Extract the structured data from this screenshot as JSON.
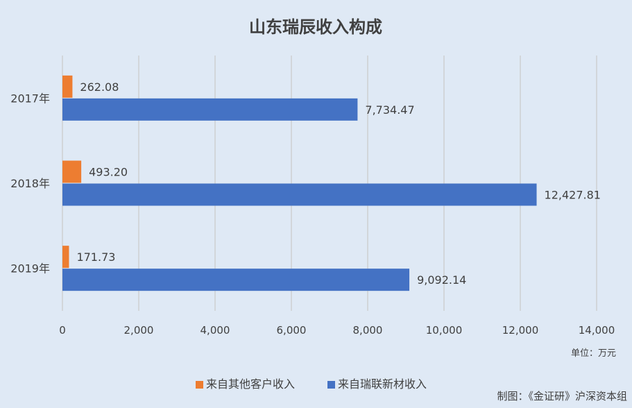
{
  "chart_data": {
    "type": "bar",
    "orientation": "horizontal",
    "title": "山东瑞辰收入构成",
    "categories": [
      "2017年",
      "2018年",
      "2019年"
    ],
    "series": [
      {
        "name": "来自其他客户收入",
        "color": "#ed7d31",
        "values": [
          262.08,
          493.2,
          171.73
        ],
        "labels": [
          "262.08",
          "493.20",
          "171.73"
        ]
      },
      {
        "name": "来自瑞联新材收入",
        "color": "#4472c4",
        "values": [
          7734.47,
          12427.81,
          9092.14
        ],
        "labels": [
          "7,734.47",
          "12,427.81",
          "9,092.14"
        ]
      }
    ],
    "xlim": [
      0,
      14000
    ],
    "xticks": [
      "0",
      "2,000",
      "4,000",
      "6,000",
      "8,000",
      "10,000",
      "12,000",
      "14,000"
    ],
    "grid": true,
    "legend": "bottom",
    "unit_note": "单位：万元",
    "source_note": "制图：《金证研》沪深资本组"
  }
}
